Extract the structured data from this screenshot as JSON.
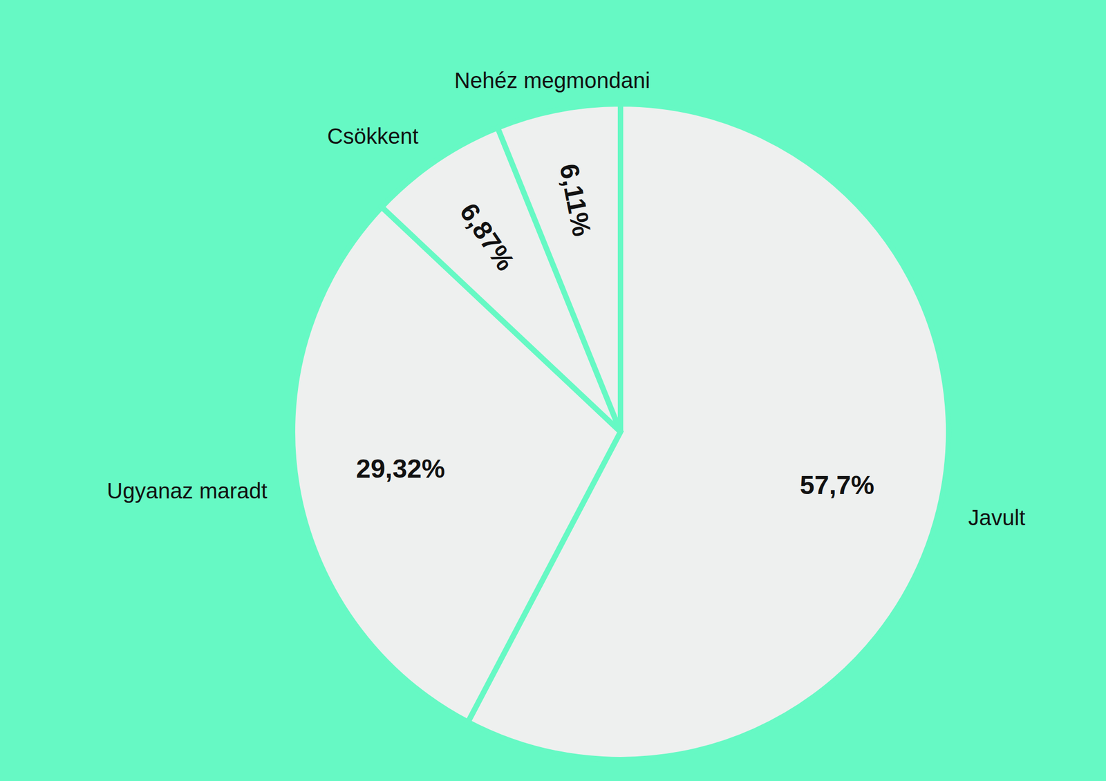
{
  "chart_data": {
    "type": "pie",
    "categories": [
      "Javult",
      "Ugyanaz maradt",
      "Csökkent",
      "Nehéz megmondani"
    ],
    "values": [
      57.7,
      29.32,
      6.87,
      6.11
    ],
    "value_labels": [
      "57,7%",
      "29,32%",
      "6,87%",
      "6,11%"
    ],
    "colors": [
      "#eef0ef",
      "#eef0ef",
      "#eef0ef",
      "#eef0ef"
    ],
    "data_labels": true
  }
}
